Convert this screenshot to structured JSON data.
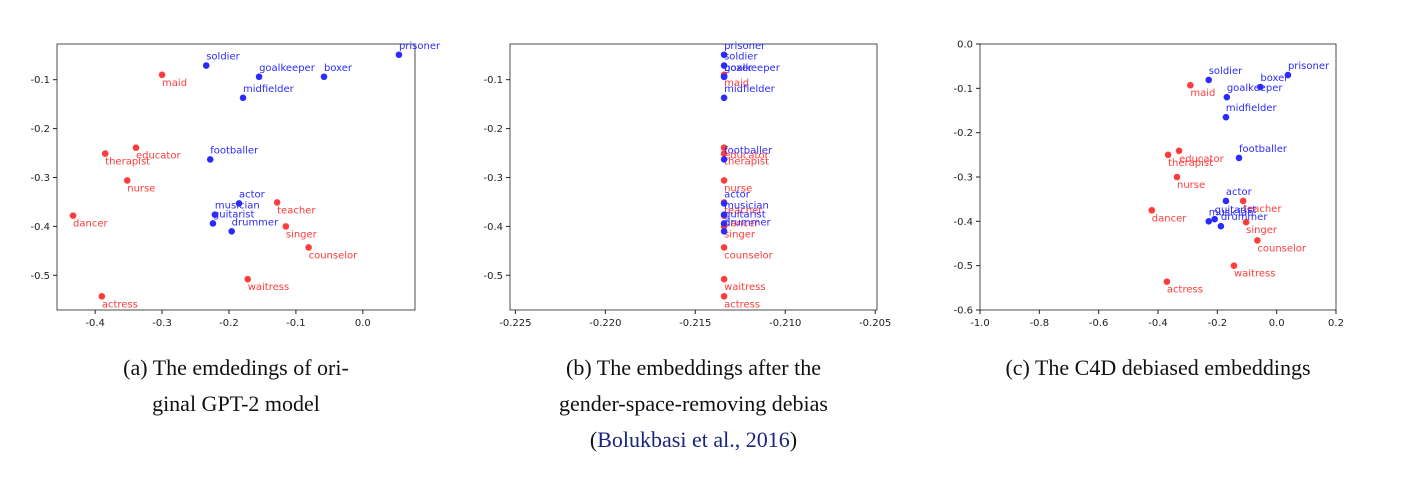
{
  "chart_data": [
    {
      "type": "scatter",
      "xlim": [
        -0.457,
        0.078
      ],
      "ylim": [
        -0.571,
        -0.027
      ],
      "xticks": [
        -0.4,
        -0.3,
        -0.2,
        -0.1,
        {
          "value": 0,
          "label": "0.0"
        }
      ],
      "yticks": [
        -0.1,
        -0.2,
        -0.3,
        -0.4,
        -0.5
      ],
      "series": [
        {
          "color": "#ff3b3b",
          "labels": [
            "maid",
            "educator",
            "therapist",
            "nurse",
            "dancer",
            "teacher",
            "singer",
            "counselor",
            "waitress",
            "actress"
          ],
          "x": [
            -0.3,
            -0.339,
            -0.385,
            -0.352,
            -0.433,
            -0.128,
            -0.115,
            -0.081,
            -0.172,
            -0.39
          ],
          "values": [
            -0.09,
            -0.239,
            -0.251,
            -0.306,
            -0.378,
            -0.351,
            -0.4,
            -0.443,
            -0.508,
            -0.543
          ]
        },
        {
          "color": "#2b2bff",
          "labels": [
            "prisoner",
            "soldier",
            "goalkeeper",
            "boxer",
            "midfielder",
            "footballer",
            "actor",
            "musician",
            "guitarist",
            "drummer"
          ],
          "x": [
            0.054,
            -0.234,
            -0.155,
            -0.058,
            -0.179,
            -0.228,
            -0.185,
            -0.221,
            -0.224,
            -0.196
          ],
          "values": [
            -0.049,
            -0.071,
            -0.094,
            -0.094,
            -0.137,
            -0.263,
            -0.353,
            -0.376,
            -0.394,
            -0.41
          ]
        }
      ],
      "caption": [
        "(a) The emdedings of ori-",
        "ginal GPT-2 model"
      ]
    },
    {
      "type": "scatter",
      "xlim": [
        -0.2253,
        -0.2049
      ],
      "ylim": [
        -0.571,
        -0.027
      ],
      "xticks": [
        -0.225,
        {
          "value": -0.22,
          "label": "-0.220"
        },
        -0.215,
        {
          "value": -0.21,
          "label": "-0.210"
        },
        -0.205
      ],
      "yticks": [
        -0.1,
        -0.2,
        -0.3,
        -0.4,
        -0.5
      ],
      "series": [
        {
          "color": "#ff3b3b",
          "labels": [
            "maid",
            "educator",
            "therapist",
            "nurse",
            "dancer",
            "teacher",
            "singer",
            "counselor",
            "waitress",
            "actress"
          ],
          "x": [
            -0.2134,
            -0.2134,
            -0.2134,
            -0.2134,
            -0.2134,
            -0.2134,
            -0.2134,
            -0.2134,
            -0.2134,
            -0.2134
          ],
          "values": [
            -0.09,
            -0.239,
            -0.251,
            -0.306,
            -0.378,
            -0.351,
            -0.4,
            -0.443,
            -0.508,
            -0.543
          ]
        },
        {
          "color": "#2b2bff",
          "labels": [
            "prisoner",
            "soldier",
            "goalkeeper",
            "boxer",
            "midfielder",
            "footballer",
            "actor",
            "musician",
            "guitarist",
            "drummer"
          ],
          "x": [
            -0.2134,
            -0.2134,
            -0.2134,
            -0.2134,
            -0.2134,
            -0.2134,
            -0.2134,
            -0.2134,
            -0.2134,
            -0.2134
          ],
          "values": [
            -0.049,
            -0.071,
            -0.094,
            -0.094,
            -0.137,
            -0.263,
            -0.353,
            -0.376,
            -0.394,
            -0.41
          ]
        }
      ],
      "caption": [
        "(b) The embeddings after the",
        "gender-space-removing debias"
      ],
      "citation": {
        "open": "(",
        "text": "Bolukbasi et al., 2016",
        "close": ")"
      }
    },
    {
      "type": "scatter",
      "xlim": [
        -1.0,
        0.2
      ],
      "ylim": [
        -0.6,
        0
      ],
      "xticks": [
        {
          "value": -1,
          "label": "-1.0"
        },
        -0.8,
        -0.6,
        -0.4,
        -0.2,
        {
          "value": 0,
          "label": "0.0"
        },
        0.2
      ],
      "yticks": [
        {
          "value": 0,
          "label": "0.0"
        },
        -0.1,
        -0.2,
        -0.3,
        -0.4,
        -0.5,
        -0.6
      ],
      "series": [
        {
          "color": "#ff3b3b",
          "labels": [
            "maid",
            "educator",
            "therapist",
            "nurse",
            "dancer",
            "teacher",
            "singer",
            "counselor",
            "waitress",
            "actress"
          ],
          "x": [
            -0.291,
            -0.329,
            -0.366,
            -0.336,
            -0.421,
            -0.113,
            -0.103,
            -0.065,
            -0.144,
            -0.37
          ],
          "values": [
            -0.093,
            -0.241,
            -0.25,
            -0.3,
            -0.375,
            -0.354,
            -0.402,
            -0.443,
            -0.5,
            -0.536
          ]
        },
        {
          "color": "#2b2bff",
          "labels": [
            "prisoner",
            "soldier",
            "goalkeeper",
            "boxer",
            "midfielder",
            "footballer",
            "actor",
            "musician",
            "guitarist",
            "drummer"
          ],
          "x": [
            0.038,
            -0.229,
            -0.168,
            -0.055,
            -0.171,
            -0.127,
            -0.171,
            -0.229,
            -0.209,
            -0.188
          ],
          "values": [
            -0.07,
            -0.081,
            -0.12,
            -0.097,
            -0.165,
            -0.257,
            -0.354,
            -0.4,
            -0.395,
            -0.411
          ]
        }
      ],
      "caption": [
        "(c) The C4D debiased embeddings"
      ]
    }
  ]
}
